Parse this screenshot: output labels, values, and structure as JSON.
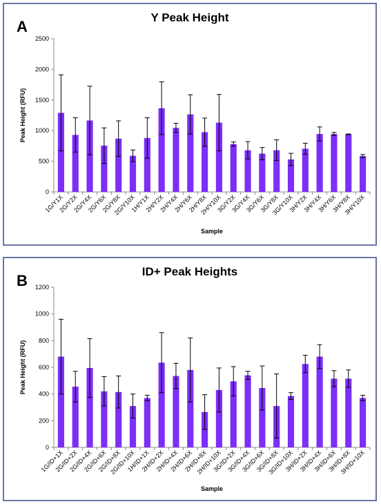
{
  "panels": [
    {
      "letter": "A",
      "chart_data": {
        "type": "bar",
        "title": "Y Peak Height",
        "xlabel": "Sample",
        "ylabel": "Peak Height (RFU)",
        "ylim": [
          0,
          2500
        ],
        "yticks": [
          0,
          500,
          1000,
          1500,
          2000,
          2500
        ],
        "grid": false,
        "bar_color": "#7b2ff7",
        "categories": [
          "1G/Y1X",
          "2G/Y2X",
          "2G/Y4X",
          "2G/Y6X",
          "2G/Y8X",
          "2G/Y10X",
          "1H/Y1X",
          "2H/Y2X",
          "2H/Y4X",
          "2H/Y6X",
          "2H/Y8X",
          "2H/Y10X",
          "3G/Y2X",
          "3G/Y4X",
          "3G/Y6X",
          "3G/Y8X",
          "3G/Y10X",
          "3H/Y2X",
          "3H/Y4X",
          "3H/Y6X",
          "3H/Y8X",
          "3H/Y10X"
        ],
        "values": [
          1290,
          930,
          1165,
          755,
          870,
          590,
          880,
          1365,
          1045,
          1265,
          975,
          1130,
          780,
          680,
          625,
          680,
          530,
          705,
          945,
          945,
          940,
          585
        ],
        "errors": [
          620,
          280,
          560,
          290,
          290,
          95,
          330,
          430,
          75,
          320,
          230,
          460,
          35,
          140,
          100,
          170,
          100,
          90,
          115,
          25,
          5,
          25
        ]
      }
    },
    {
      "letter": "B",
      "chart_data": {
        "type": "bar",
        "title": "ID+ Peak Heights",
        "xlabel": "Sample",
        "ylabel": "Peak Height (RFU)",
        "ylim": [
          0,
          1200
        ],
        "yticks": [
          0,
          200,
          400,
          600,
          800,
          1000,
          1200
        ],
        "grid": false,
        "bar_color": "#7b2ff7",
        "categories": [
          "1G/ID+1X",
          "2G/ID+2X",
          "2G/ID+4X",
          "2G/ID+6X",
          "2G/ID+8X",
          "2G/ID+10X",
          "1H/ID+1X",
          "2H/ID+2X",
          "2H/ID+4X",
          "2H/ID+6X",
          "2H/ID+8X",
          "2H/ID+10X",
          "3G/ID+2X",
          "3G/ID+4X",
          "3G/ID+6X",
          "3G/ID+8X",
          "3G/ID+10X",
          "3H/ID+2X",
          "3H/ID+4X",
          "3H/ID+6X",
          "3H/ID+8X",
          "3H/ID+10X"
        ],
        "values": [
          680,
          455,
          595,
          420,
          415,
          310,
          370,
          635,
          535,
          580,
          265,
          430,
          495,
          540,
          445,
          310,
          385,
          625,
          680,
          515,
          515,
          370
        ],
        "errors": [
          280,
          115,
          220,
          110,
          120,
          90,
          20,
          225,
          95,
          240,
          130,
          165,
          110,
          30,
          165,
          240,
          25,
          65,
          90,
          60,
          65,
          20
        ]
      }
    }
  ]
}
